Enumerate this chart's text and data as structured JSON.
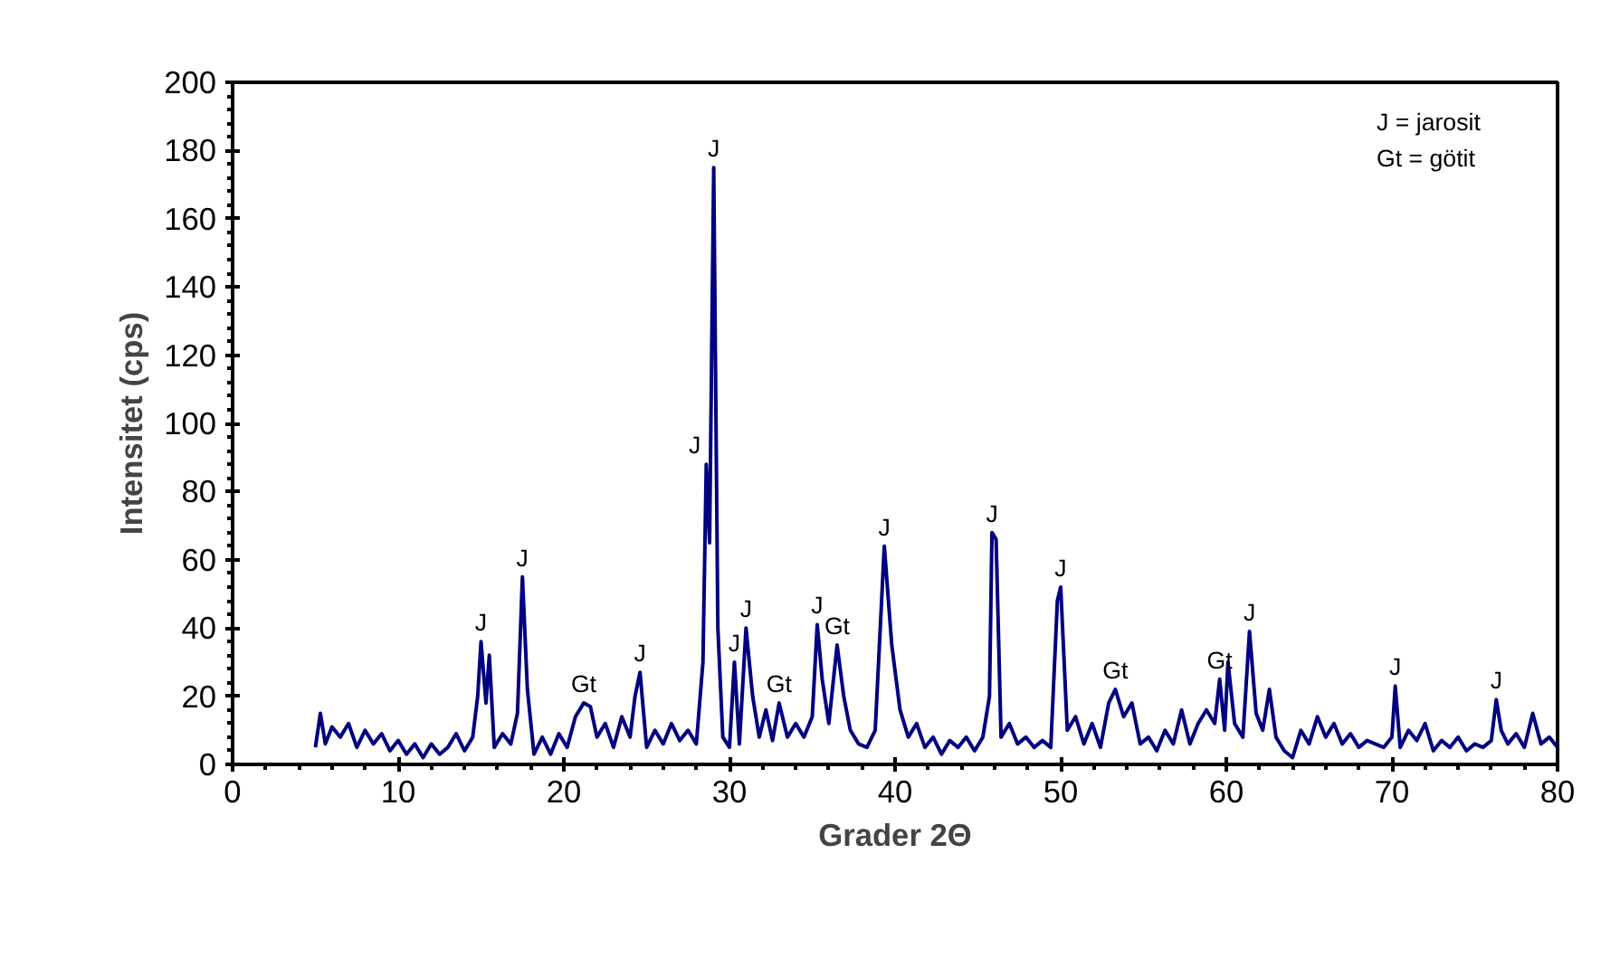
{
  "chart_data": {
    "type": "line",
    "xlabel": "Grader 2Θ",
    "ylabel": "Intensitet (cps)",
    "xlim": [
      0,
      80
    ],
    "xticks": [
      0,
      10,
      20,
      30,
      40,
      50,
      60,
      70,
      80
    ],
    "ylim": [
      0,
      200
    ],
    "yticks": [
      0,
      20,
      40,
      60,
      80,
      100,
      120,
      140,
      160,
      180,
      200
    ],
    "grid": false,
    "marker": "none",
    "line_style": "solid",
    "series": [
      {
        "color": "#000080",
        "x": [
          5,
          5.3,
          5.6,
          6,
          6.5,
          7,
          7.5,
          8,
          8.5,
          9,
          9.5,
          10,
          10.5,
          11,
          11.5,
          12,
          12.5,
          13,
          13.5,
          14,
          14.5,
          14.8,
          15.0,
          15.3,
          15.5,
          15.8,
          16.3,
          16.8,
          17.2,
          17.5,
          17.8,
          18.2,
          18.7,
          19.2,
          19.7,
          20.2,
          20.7,
          21.2,
          21.6,
          22,
          22.5,
          23,
          23.5,
          24,
          24.3,
          24.6,
          25,
          25.5,
          26,
          26.5,
          27,
          27.5,
          28,
          28.4,
          28.6,
          28.8,
          29.05,
          29.3,
          29.6,
          30,
          30.3,
          30.6,
          31.0,
          31.4,
          31.8,
          32.2,
          32.6,
          33.0,
          33.5,
          34,
          34.5,
          35,
          35.3,
          35.6,
          36,
          36.5,
          36.9,
          37.3,
          37.8,
          38.3,
          38.8,
          39.35,
          39.8,
          40.3,
          40.8,
          41.3,
          41.8,
          42.3,
          42.8,
          43.3,
          43.8,
          44.3,
          44.8,
          45.3,
          45.7,
          45.85,
          46.1,
          46.4,
          46.9,
          47.4,
          47.9,
          48.4,
          48.9,
          49.4,
          49.8,
          50.0,
          50.4,
          50.9,
          51.4,
          51.9,
          52.4,
          52.9,
          53.3,
          53.8,
          54.3,
          54.8,
          55.3,
          55.8,
          56.3,
          56.8,
          57.3,
          57.8,
          58.3,
          58.8,
          59.3,
          59.6,
          59.9,
          60.1,
          60.5,
          61.0,
          61.4,
          61.8,
          62.2,
          62.6,
          63.0,
          63.5,
          64,
          64.5,
          65,
          65.5,
          66,
          66.5,
          67,
          67.5,
          68,
          68.5,
          69,
          69.5,
          70.0,
          70.2,
          70.5,
          71,
          71.5,
          72,
          72.5,
          73,
          73.5,
          74,
          74.5,
          75,
          75.5,
          76,
          76.3,
          76.6,
          77,
          77.5,
          78,
          78.5,
          79,
          79.5,
          80
        ],
        "values": [
          5,
          15,
          6,
          11,
          8,
          12,
          5,
          10,
          6,
          9,
          4,
          7,
          3,
          6,
          2,
          6,
          3,
          5,
          9,
          4,
          8,
          20,
          36,
          18,
          32,
          5,
          9,
          6,
          15,
          55,
          22,
          3,
          8,
          3,
          9,
          5,
          14,
          18,
          17,
          8,
          12,
          5,
          14,
          8,
          20,
          27,
          5,
          10,
          6,
          12,
          7,
          10,
          6,
          30,
          88,
          65,
          175,
          40,
          8,
          5,
          30,
          6,
          40,
          20,
          8,
          16,
          7,
          18,
          8,
          12,
          8,
          14,
          41,
          25,
          12,
          35,
          20,
          10,
          6,
          5,
          10,
          64,
          35,
          16,
          8,
          12,
          5,
          8,
          3,
          7,
          5,
          8,
          4,
          8,
          20,
          68,
          66,
          8,
          12,
          6,
          8,
          5,
          7,
          5,
          48,
          52,
          10,
          14,
          6,
          12,
          5,
          18,
          22,
          14,
          18,
          6,
          8,
          4,
          10,
          6,
          16,
          6,
          12,
          16,
          12,
          25,
          10,
          30,
          12,
          8,
          39,
          15,
          10,
          22,
          8,
          4,
          2,
          10,
          6,
          14,
          8,
          12,
          6,
          9,
          5,
          7,
          6,
          5,
          8,
          23,
          5,
          10,
          7,
          12,
          4,
          7,
          5,
          8,
          4,
          6,
          5,
          7,
          19,
          10,
          6,
          9,
          5,
          15,
          6,
          8,
          5
        ]
      }
    ],
    "annotations": [
      "J = jarosit",
      "Gt = götit",
      {
        "text": "J",
        "x": 15.0,
        "y": 36
      },
      {
        "text": "J",
        "x": 17.5,
        "y": 55
      },
      {
        "text": "Gt",
        "x": 21.2,
        "y": 18
      },
      {
        "text": "J",
        "x": 24.6,
        "y": 27
      },
      {
        "text": "J",
        "x": 28.6,
        "y": 88
      },
      {
        "text": "J",
        "x": 29.05,
        "y": 175
      },
      {
        "text": "J",
        "x": 30.3,
        "y": 30
      },
      {
        "text": "J",
        "x": 31.0,
        "y": 40
      },
      {
        "text": "Gt",
        "x": 33.0,
        "y": 18
      },
      {
        "text": "J",
        "x": 35.3,
        "y": 41
      },
      {
        "text": "Gt",
        "x": 36.5,
        "y": 35
      },
      {
        "text": "J",
        "x": 39.35,
        "y": 64
      },
      {
        "text": "J",
        "x": 45.85,
        "y": 68
      },
      {
        "text": "J",
        "x": 50.0,
        "y": 52
      },
      {
        "text": "Gt",
        "x": 53.3,
        "y": 22
      },
      {
        "text": "Gt",
        "x": 59.6,
        "y": 25
      },
      {
        "text": "J",
        "x": 61.4,
        "y": 39
      },
      {
        "text": "J",
        "x": 70.2,
        "y": 23
      },
      {
        "text": "J",
        "x": 76.3,
        "y": 19
      }
    ]
  }
}
